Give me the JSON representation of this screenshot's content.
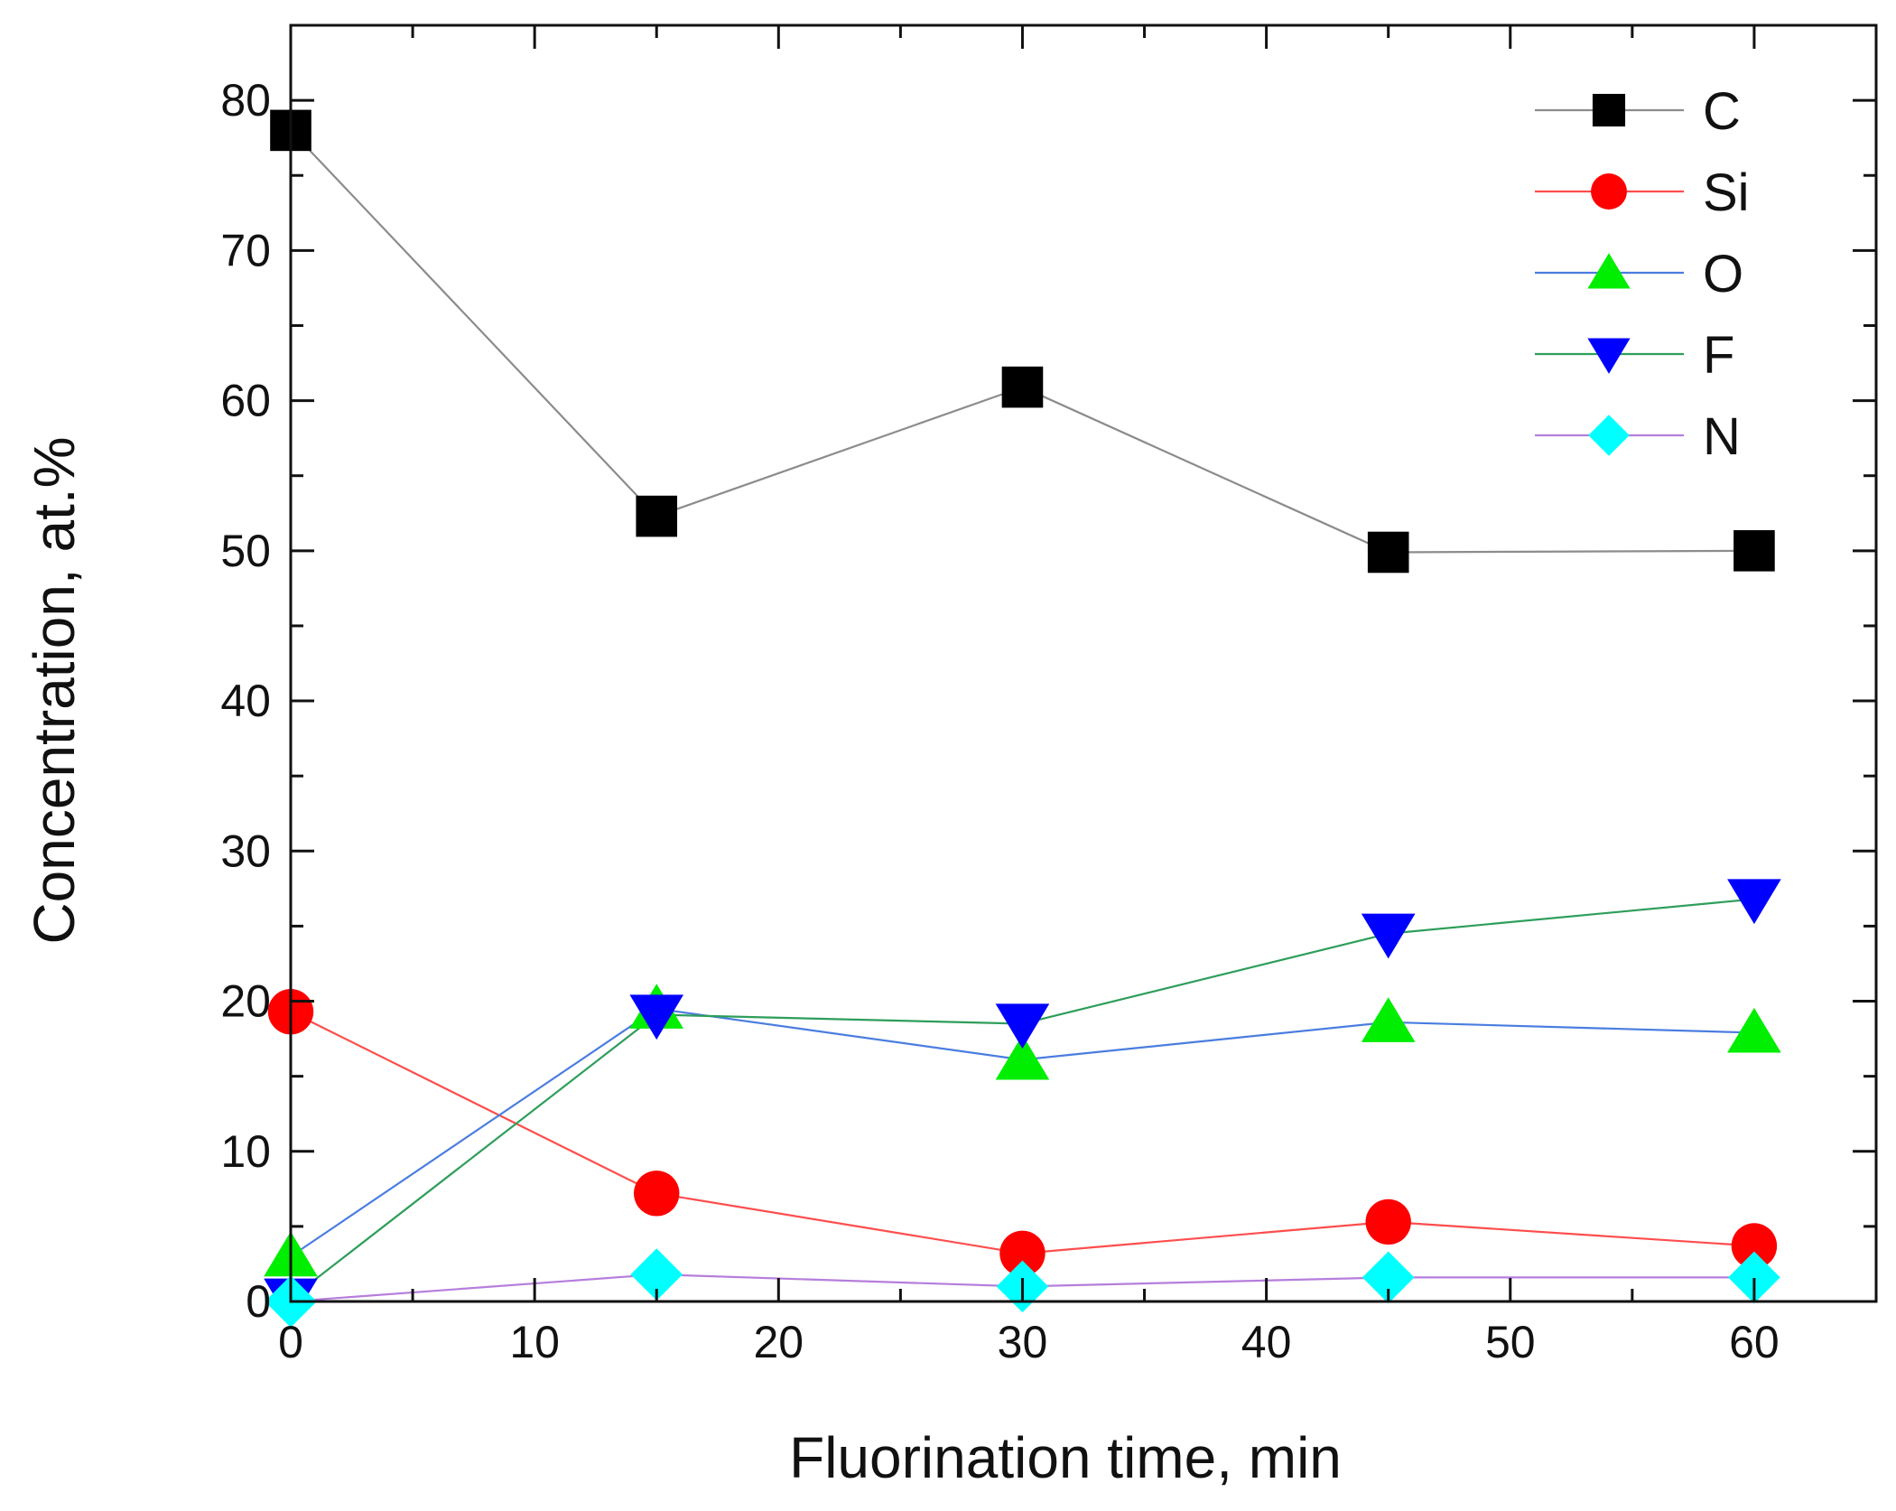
{
  "chart_data": {
    "type": "line",
    "title": "",
    "xlabel": "Fluorination time, min",
    "ylabel": "Concentration, at.%",
    "xlim": [
      0,
      65
    ],
    "ylim": [
      0,
      85
    ],
    "xticks": [
      0,
      10,
      20,
      30,
      40,
      50,
      60
    ],
    "yticks": [
      0,
      10,
      20,
      30,
      40,
      50,
      60,
      70,
      80
    ],
    "xtick_labels": [
      "0",
      "10",
      "20",
      "30",
      "40",
      "50",
      "60"
    ],
    "ytick_labels": [
      "0",
      "10",
      "20",
      "30",
      "40",
      "50",
      "60",
      "70",
      "80"
    ],
    "grid": false,
    "legend_position": "top-right",
    "x": [
      0,
      15,
      30,
      45,
      60
    ],
    "series": [
      {
        "name": "C",
        "values": [
          78.0,
          52.3,
          60.9,
          49.9,
          50.0
        ],
        "marker": "square",
        "marker_color": "#000000",
        "line_color": "#8c8c8c"
      },
      {
        "name": "Si",
        "values": [
          19.3,
          7.2,
          3.2,
          5.3,
          3.7
        ],
        "marker": "circle",
        "marker_color": "#ff0000",
        "line_color": "#ff4d4d"
      },
      {
        "name": "O",
        "values": [
          3.0,
          19.5,
          16.1,
          18.6,
          17.9
        ],
        "marker": "triangle-up",
        "marker_color": "#00ee00",
        "line_color": "#4a7de0"
      },
      {
        "name": "F",
        "values": [
          0.2,
          19.1,
          18.5,
          24.5,
          26.8
        ],
        "marker": "triangle-down",
        "marker_color": "#0000ff",
        "line_color": "#2e9e5a"
      },
      {
        "name": "N",
        "values": [
          0.0,
          1.8,
          1.0,
          1.6,
          1.6
        ],
        "marker": "diamond",
        "marker_color": "#00ffff",
        "line_color": "#b57edc"
      }
    ]
  }
}
